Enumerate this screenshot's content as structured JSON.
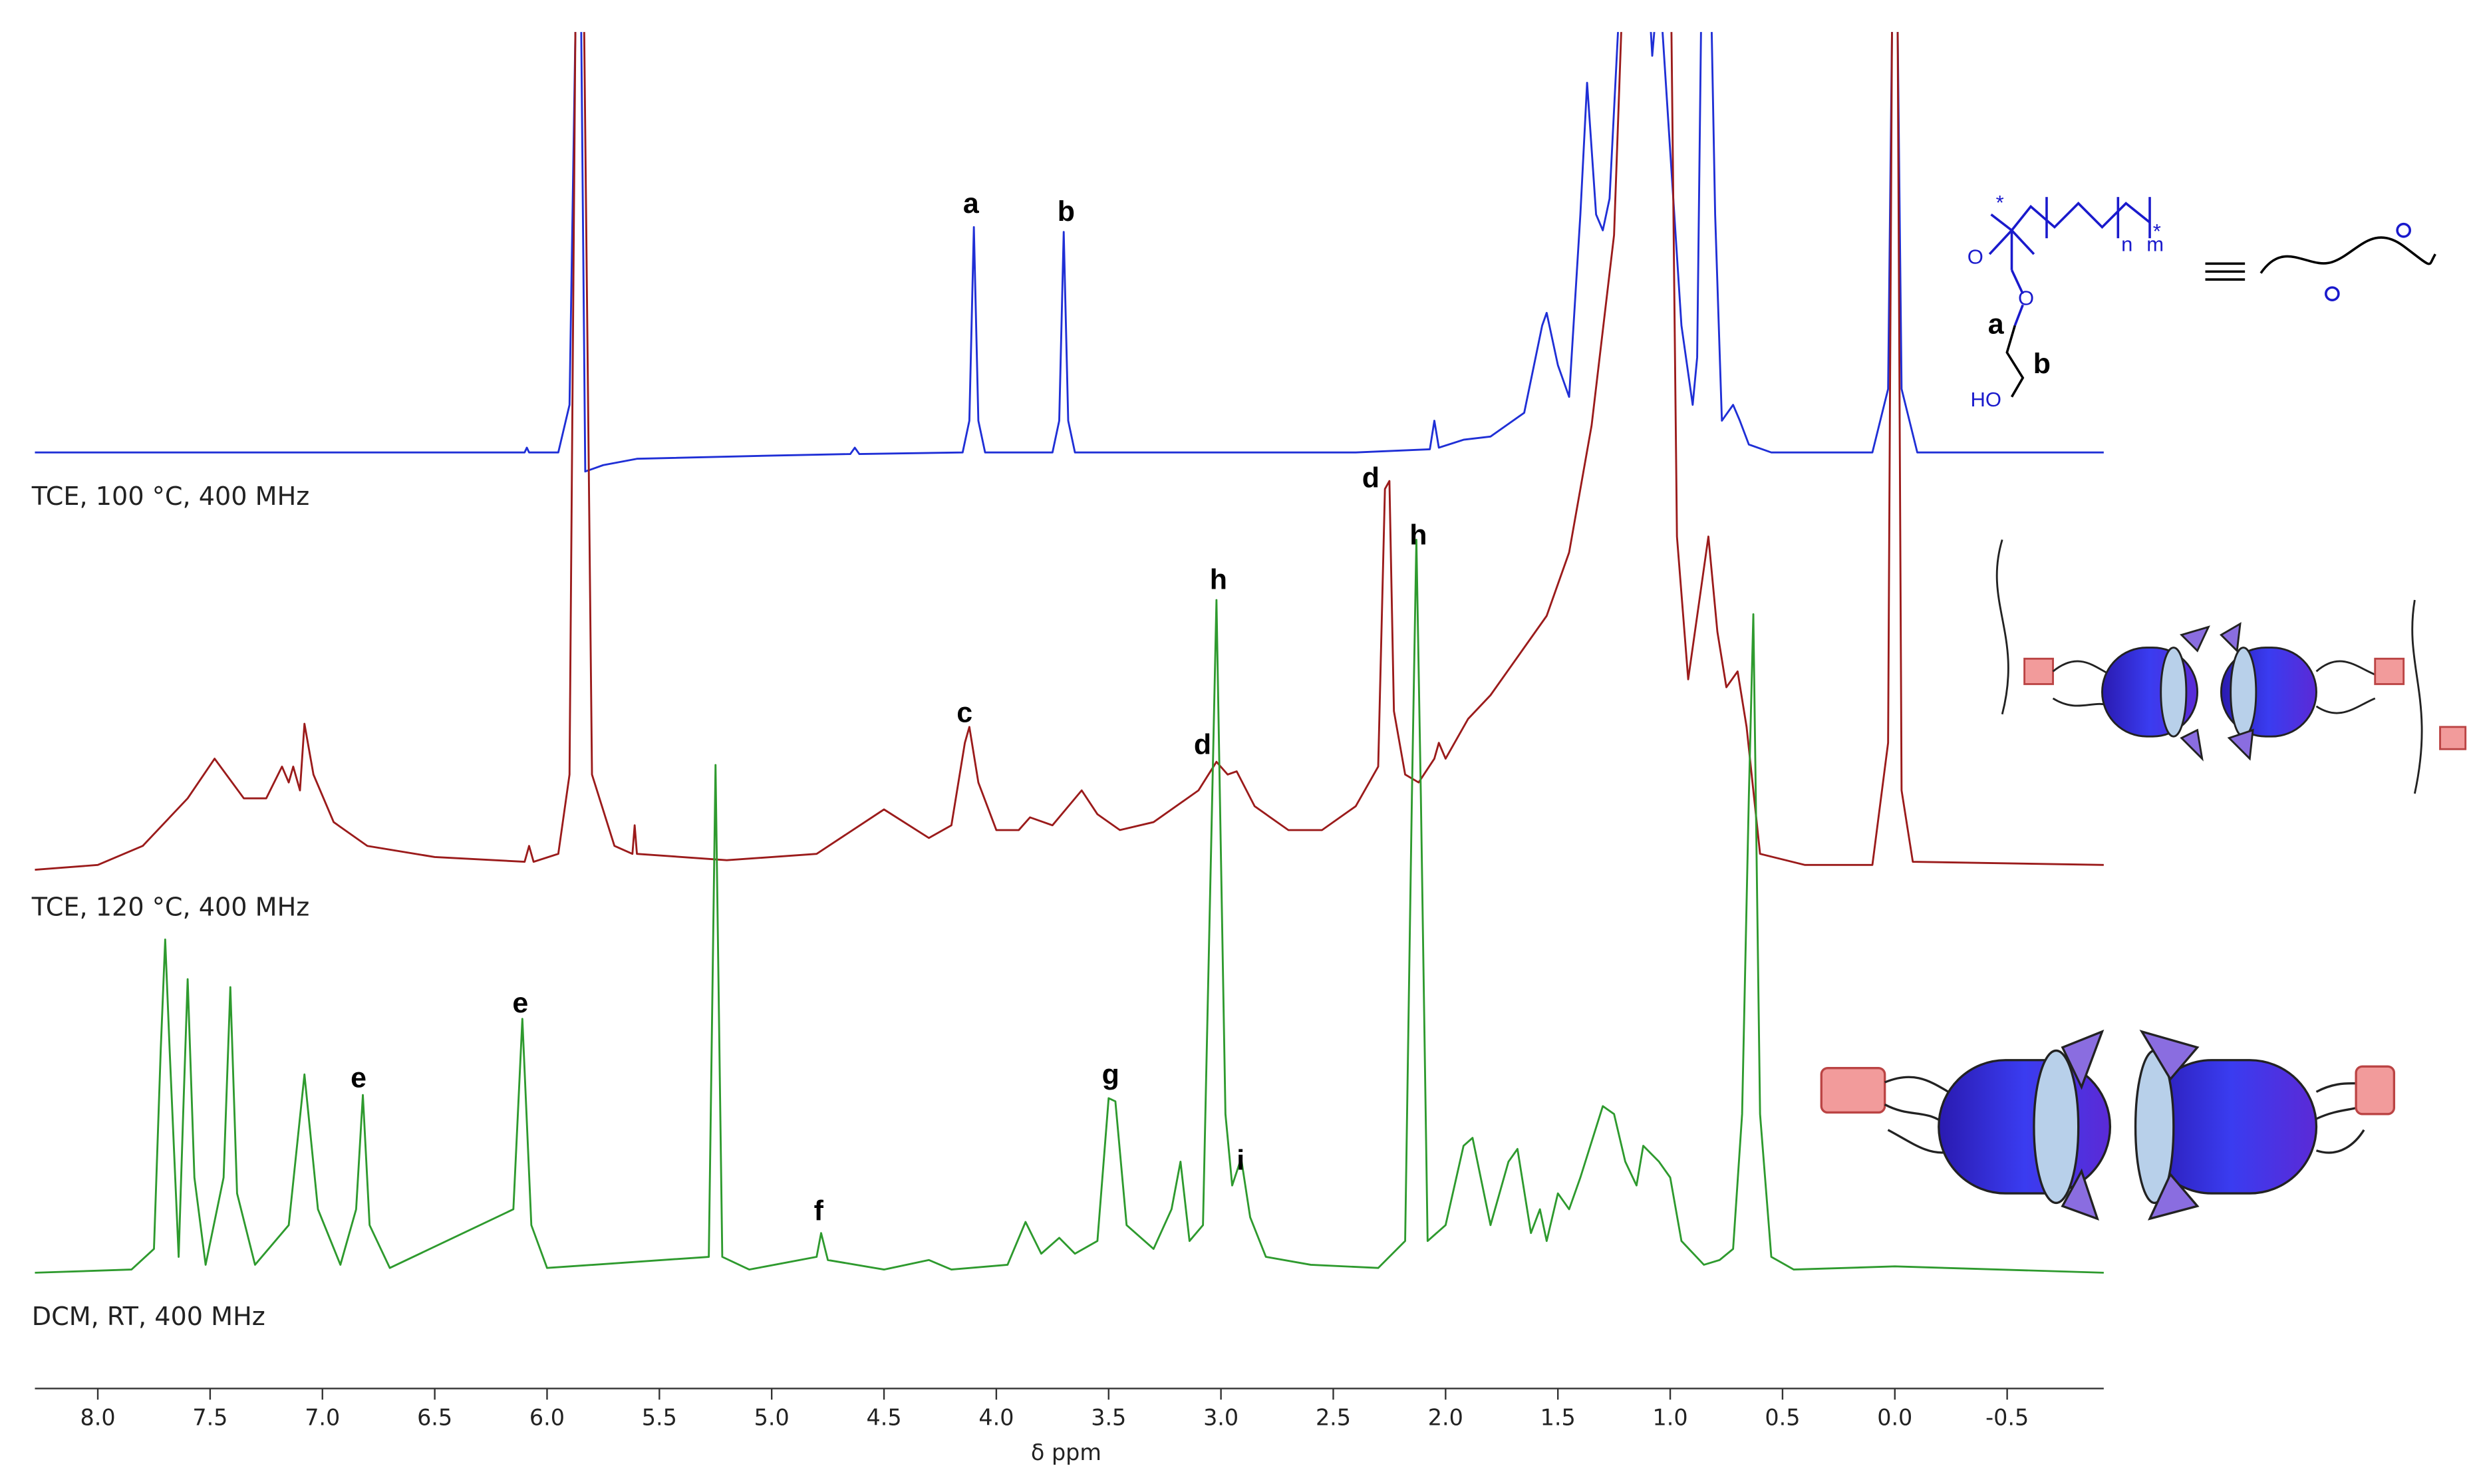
{
  "chart_data": {
    "type": "line",
    "xlabel": "δ ppm",
    "xlim": [
      8.28,
      -0.93
    ],
    "xticks": [
      {
        "value": 8,
        "label": "8.0"
      },
      7.5,
      {
        "value": 7,
        "label": "7.0"
      },
      6.5,
      {
        "value": 6,
        "label": "6.0"
      },
      5.5,
      {
        "value": 5,
        "label": "5.0"
      },
      4.5,
      {
        "value": 4,
        "label": "4.0"
      },
      3.5,
      {
        "value": 3,
        "label": "3.0"
      },
      2.5,
      {
        "value": 2,
        "label": "2.0"
      },
      1.5,
      {
        "value": 1,
        "label": "1.0"
      },
      0.5,
      {
        "value": 0,
        "label": "0.0"
      },
      -0.5
    ],
    "series": [
      {
        "name": "TCE, 100 °C, 400 MHz",
        "color": "#1f2fd6",
        "x": [
          8.28,
          6.1,
          6.09,
          6.08,
          5.95,
          5.9,
          5.87,
          5.85,
          5.83,
          5.75,
          5.6,
          5.0,
          4.65,
          4.63,
          4.61,
          4.15,
          4.12,
          4.1,
          4.08,
          4.05,
          3.75,
          3.72,
          3.7,
          3.68,
          3.65,
          2.4,
          2.07,
          2.05,
          2.03,
          1.92,
          1.8,
          1.65,
          1.57,
          1.55,
          1.5,
          1.45,
          1.4,
          1.37,
          1.33,
          1.3,
          1.27,
          1.22,
          1.1,
          1.08,
          1.05,
          0.95,
          0.9,
          0.88,
          0.86,
          0.82,
          0.8,
          0.77,
          0.72,
          0.69,
          0.65,
          0.55,
          0.1,
          0.03,
          0.01,
          -0.01,
          -0.03,
          -0.1,
          -0.93
        ],
        "values": [
          0,
          0,
          3,
          0,
          0,
          30,
          300,
          300,
          -12,
          -8,
          -4,
          -2,
          -1,
          3,
          -1,
          0,
          20,
          142,
          20,
          0,
          0,
          20,
          139,
          20,
          0,
          0,
          2,
          20,
          3,
          8,
          10,
          25,
          80,
          88,
          55,
          35,
          150,
          233,
          150,
          140,
          160,
          300,
          300,
          250,
          300,
          80,
          30,
          60,
          300,
          300,
          150,
          20,
          30,
          20,
          5,
          0,
          0,
          40,
          300,
          300,
          40,
          0,
          0
        ]
      },
      {
        "name": "TCE, 120 °C, 400 MHz",
        "color": "#9b1b1b",
        "x": [
          8.28,
          8.0,
          7.8,
          7.6,
          7.48,
          7.35,
          7.25,
          7.18,
          7.15,
          7.13,
          7.1,
          7.08,
          7.04,
          6.95,
          6.8,
          6.5,
          6.1,
          6.08,
          6.06,
          5.95,
          5.9,
          5.87,
          5.84,
          5.8,
          5.7,
          5.62,
          5.61,
          5.6,
          5.2,
          4.8,
          4.5,
          4.3,
          4.2,
          4.14,
          4.12,
          4.08,
          4.0,
          3.9,
          3.85,
          3.75,
          3.62,
          3.55,
          3.45,
          3.3,
          3.1,
          3.02,
          2.97,
          2.93,
          2.85,
          2.7,
          2.55,
          2.4,
          2.3,
          2.27,
          2.25,
          2.23,
          2.18,
          2.12,
          2.05,
          2.03,
          2.0,
          1.9,
          1.8,
          1.7,
          1.55,
          1.45,
          1.35,
          1.25,
          1.2,
          1.0,
          0.97,
          0.92,
          0.87,
          0.83,
          0.79,
          0.75,
          0.7,
          0.66,
          0.6,
          0.4,
          0.1,
          0.03,
          0.01,
          -0.01,
          -0.03,
          -0.08,
          -0.93
        ],
        "values": [
          0,
          3,
          15,
          45,
          70,
          45,
          45,
          65,
          55,
          65,
          50,
          92,
          60,
          30,
          15,
          8,
          5,
          15,
          5,
          10,
          60,
          600,
          600,
          60,
          15,
          10,
          28,
          10,
          6,
          10,
          38,
          20,
          28,
          80,
          90,
          55,
          25,
          25,
          33,
          28,
          50,
          35,
          25,
          30,
          50,
          68,
          60,
          62,
          40,
          25,
          25,
          40,
          65,
          240,
          245,
          100,
          60,
          55,
          70,
          80,
          70,
          95,
          110,
          130,
          160,
          200,
          280,
          400,
          600,
          600,
          210,
          120,
          170,
          210,
          150,
          115,
          125,
          90,
          10,
          3,
          3,
          80,
          600,
          600,
          50,
          5,
          3
        ]
      },
      {
        "name": "DCM, RT, 400 MHz",
        "color": "#2e9a2e",
        "x": [
          8.28,
          7.85,
          7.75,
          7.72,
          7.7,
          7.68,
          7.64,
          7.62,
          7.6,
          7.57,
          7.52,
          7.44,
          7.41,
          7.38,
          7.3,
          7.15,
          7.08,
          7.02,
          6.92,
          6.85,
          6.82,
          6.79,
          6.7,
          6.15,
          6.11,
          6.07,
          6.0,
          5.28,
          5.25,
          5.22,
          5.1,
          4.8,
          4.78,
          4.75,
          4.5,
          4.3,
          4.2,
          3.95,
          3.87,
          3.8,
          3.72,
          3.65,
          3.55,
          3.5,
          3.47,
          3.42,
          3.3,
          3.22,
          3.18,
          3.14,
          3.08,
          3.02,
          2.98,
          2.95,
          2.91,
          2.87,
          2.8,
          2.6,
          2.3,
          2.18,
          2.15,
          2.13,
          2.11,
          2.08,
          2.0,
          1.92,
          1.88,
          1.8,
          1.72,
          1.68,
          1.62,
          1.58,
          1.55,
          1.5,
          1.45,
          1.4,
          1.3,
          1.25,
          1.2,
          1.15,
          1.12,
          1.05,
          1.0,
          0.95,
          0.85,
          0.78,
          0.72,
          0.68,
          0.65,
          0.63,
          0.6,
          0.55,
          0.45,
          0.0,
          -0.93
        ],
        "values": [
          0,
          2,
          15,
          140,
          210,
          140,
          10,
          100,
          185,
          60,
          5,
          60,
          180,
          50,
          5,
          30,
          125,
          40,
          5,
          40,
          112,
          30,
          3,
          40,
          160,
          30,
          3,
          10,
          320,
          10,
          2,
          10,
          25,
          8,
          2,
          8,
          2,
          5,
          32,
          12,
          22,
          12,
          20,
          110,
          108,
          30,
          15,
          40,
          70,
          20,
          30,
          424,
          100,
          55,
          72,
          35,
          10,
          5,
          3,
          20,
          300,
          462,
          300,
          20,
          30,
          80,
          85,
          30,
          70,
          78,
          25,
          40,
          20,
          50,
          40,
          60,
          105,
          100,
          70,
          55,
          80,
          70,
          60,
          20,
          5,
          8,
          15,
          100,
          300,
          415,
          100,
          10,
          2,
          4,
          0
        ]
      }
    ],
    "peak_labels": [
      "a",
      "b",
      "c",
      "d",
      "d",
      "h",
      "h",
      "e",
      "e",
      "f",
      "g",
      "i"
    ],
    "structure_labels": [
      "*",
      "*",
      "n",
      "m",
      "O",
      "O",
      "a",
      "b",
      "HO"
    ]
  }
}
